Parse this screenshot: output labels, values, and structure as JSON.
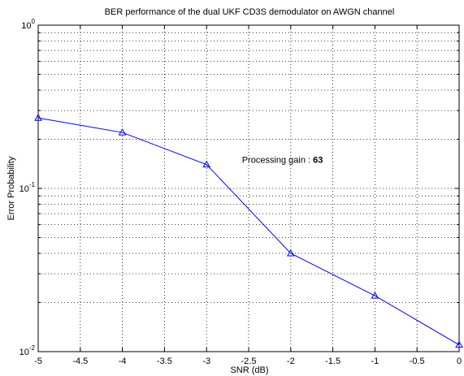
{
  "chart_data": {
    "type": "line",
    "title": "BER performance of the dual UKF CD3S demodulator on AWGN channel",
    "xlabel": "SNR (dB)",
    "ylabel": "Error Probability",
    "xlim": [
      -5,
      0
    ],
    "ylim": [
      0.01,
      1
    ],
    "y_scale": "log",
    "grid": true,
    "x_ticks": [
      -5,
      -4.5,
      -4,
      -3.5,
      -3,
      -2.5,
      -2,
      -1.5,
      -1,
      -0.5,
      0
    ],
    "x_tick_labels": [
      "-5",
      "-4.5",
      "-4",
      "-3.5",
      "-3",
      "-2.5",
      "-2",
      "-1.5",
      "-1",
      "-0.5",
      "0"
    ],
    "y_ticks": [
      {
        "value": 0.01,
        "base": "10",
        "exp": "-2"
      },
      {
        "value": 0.1,
        "base": "10",
        "exp": "-1"
      },
      {
        "value": 1,
        "base": "10",
        "exp": "0"
      }
    ],
    "series": [
      {
        "color": "#0000ff",
        "marker": "triangle",
        "x": [
          -5,
          -4,
          -3,
          -2,
          -1,
          0
        ],
        "y": [
          0.27,
          0.22,
          0.14,
          0.04,
          0.022,
          0.011
        ]
      }
    ],
    "annotation": {
      "label": "Processing gain : ",
      "value": "63",
      "x": -2.58,
      "y": 0.15
    }
  }
}
